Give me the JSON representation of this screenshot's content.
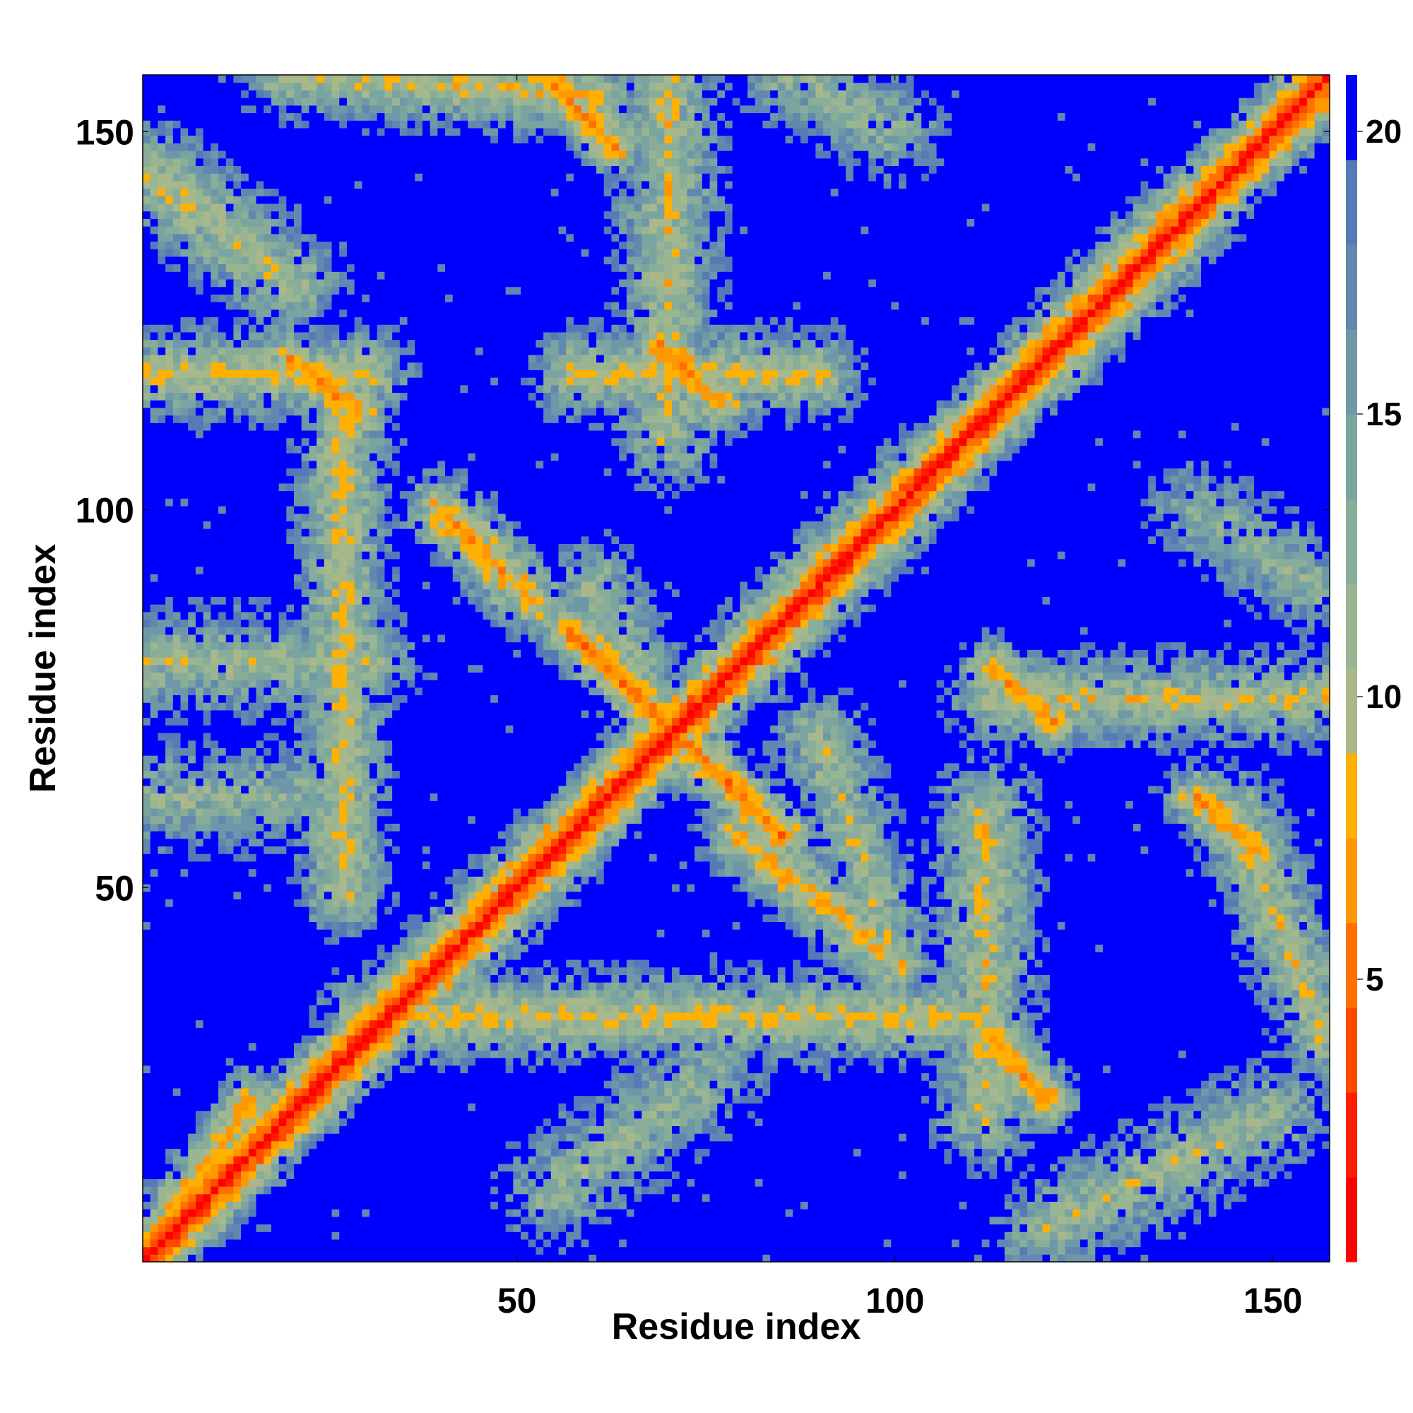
{
  "chart_data": {
    "type": "heatmap",
    "title": "",
    "xlabel": "Residue index",
    "ylabel": "Residue index",
    "n_residues": 157,
    "xlim": [
      1,
      157
    ],
    "ylim": [
      1,
      157
    ],
    "x_ticks": [
      50,
      100,
      150
    ],
    "y_ticks": [
      50,
      100,
      150
    ],
    "colorbar": {
      "ticks": [
        5,
        10,
        15,
        20
      ],
      "range": [
        0,
        21
      ],
      "levels": [
        {
          "max": 1.5,
          "color": "#ff0000"
        },
        {
          "max": 3.0,
          "color": "#ff1f00"
        },
        {
          "max": 4.5,
          "color": "#ff4a00"
        },
        {
          "max": 6.0,
          "color": "#ff7000"
        },
        {
          "max": 7.5,
          "color": "#ff9800"
        },
        {
          "max": 9.0,
          "color": "#ffb000"
        },
        {
          "max": 10.5,
          "color": "#a9b88a"
        },
        {
          "max": 12.0,
          "color": "#99b592"
        },
        {
          "max": 13.5,
          "color": "#89ad98"
        },
        {
          "max": 15.0,
          "color": "#7aa4a0"
        },
        {
          "max": 16.5,
          "color": "#6e98a8"
        },
        {
          "max": 18.0,
          "color": "#6288b0"
        },
        {
          "max": 19.5,
          "color": "#557bb6"
        },
        {
          "max": 21.0,
          "color": "#0000ff"
        }
      ]
    },
    "contact_segments": [
      {
        "a": [
          1,
          1
        ],
        "b": [
          157,
          157
        ],
        "core": 1.2,
        "width": 4
      },
      {
        "a": [
          1,
          2
        ],
        "b": [
          15,
          22
        ],
        "core": 7,
        "width": 3
      },
      {
        "a": [
          35,
          35
        ],
        "b": [
          55,
          55
        ],
        "core": 4,
        "width": 5
      },
      {
        "a": [
          80,
          80
        ],
        "b": [
          105,
          105
        ],
        "core": 4,
        "width": 5
      },
      {
        "a": [
          120,
          120
        ],
        "b": [
          140,
          140
        ],
        "core": 4,
        "width": 5
      },
      {
        "a": [
          57,
          84
        ],
        "b": [
          85,
          57
        ],
        "core": 5,
        "width": 3
      },
      {
        "a": [
          55,
          156
        ],
        "b": [
          63,
          148
        ],
        "core": 6,
        "width": 3
      },
      {
        "a": [
          20,
          120
        ],
        "b": [
          29,
          113
        ],
        "core": 6,
        "width": 3
      },
      {
        "a": [
          69,
          122
        ],
        "b": [
          77,
          114
        ],
        "core": 6,
        "width": 3
      },
      {
        "a": [
          113,
          79
        ],
        "b": [
          121,
          72
        ],
        "core": 6,
        "width": 3
      },
      {
        "a": [
          140,
          62
        ],
        "b": [
          148,
          55
        ],
        "core": 6,
        "width": 3
      },
      {
        "a": [
          113,
          30
        ],
        "b": [
          120,
          22
        ],
        "core": 6,
        "width": 3
      },
      {
        "a": [
          40,
          100
        ],
        "b": [
          52,
          88
        ],
        "core": 7,
        "width": 4
      },
      {
        "a": [
          79,
          57
        ],
        "b": [
          100,
          40
        ],
        "core": 8,
        "width": 4
      },
      {
        "a": [
          1,
          145
        ],
        "b": [
          20,
          130
        ],
        "core": 10,
        "width": 6
      },
      {
        "a": [
          20,
          158
        ],
        "b": [
          60,
          155
        ],
        "core": 9,
        "width": 5
      },
      {
        "a": [
          1,
          118
        ],
        "b": [
          30,
          118
        ],
        "core": 9,
        "width": 5
      },
      {
        "a": [
          27,
          50
        ],
        "b": [
          27,
          118
        ],
        "core": 9,
        "width": 5
      },
      {
        "a": [
          58,
          118
        ],
        "b": [
          90,
          118
        ],
        "core": 9,
        "width": 5
      },
      {
        "a": [
          70,
          110
        ],
        "b": [
          70,
          158
        ],
        "core": 10,
        "width": 6
      },
      {
        "a": [
          112,
          60
        ],
        "b": [
          112,
          20
        ],
        "core": 10,
        "width": 6
      },
      {
        "a": [
          30,
          33
        ],
        "b": [
          110,
          33
        ],
        "core": 9,
        "width": 5
      },
      {
        "a": [
          113,
          75
        ],
        "b": [
          157,
          75
        ],
        "core": 10,
        "width": 5
      },
      {
        "a": [
          145,
          60
        ],
        "b": [
          157,
          30
        ],
        "core": 10,
        "width": 5
      },
      {
        "a": [
          120,
          5
        ],
        "b": [
          150,
          20
        ],
        "core": 11,
        "width": 6
      },
      {
        "a": [
          1,
          80
        ],
        "b": [
          30,
          80
        ],
        "core": 11,
        "width": 6
      },
      {
        "a": [
          1,
          62
        ],
        "b": [
          20,
          62
        ],
        "core": 12,
        "width": 6
      },
      {
        "a": [
          55,
          10
        ],
        "b": [
          75,
          25
        ],
        "core": 12,
        "width": 6
      },
      {
        "a": [
          85,
          158
        ],
        "b": [
          100,
          150
        ],
        "core": 12,
        "width": 5
      },
      {
        "a": [
          140,
          100
        ],
        "b": [
          155,
          90
        ],
        "core": 12,
        "width": 5
      },
      {
        "a": [
          60,
          90
        ],
        "b": [
          70,
          70
        ],
        "core": 11,
        "width": 5
      },
      {
        "a": [
          90,
          70
        ],
        "b": [
          100,
          40
        ],
        "core": 11,
        "width": 5
      }
    ]
  }
}
